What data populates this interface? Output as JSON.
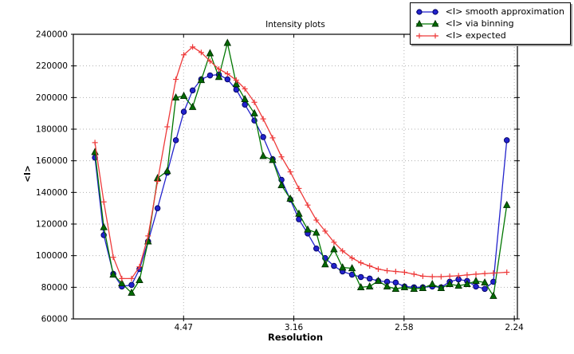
{
  "figure": {
    "background": "#ffffff",
    "frame_color": "#000000",
    "grid_color": "#b0b0b0"
  },
  "chart_data": {
    "type": "line",
    "title": "Intensity plots",
    "xlabel": "Resolution",
    "ylabel": "<I>",
    "grid": true,
    "legend_position": "top-right-outside",
    "x_axis": {
      "unit": "1/d^2",
      "range": [
        0,
        0.2014
      ],
      "ticks": [
        0.05,
        0.1,
        0.15,
        0.2
      ],
      "tick_labels": [
        "4.47",
        "3.16",
        "2.58",
        "2.24"
      ]
    },
    "y_axis": {
      "range": [
        60000,
        240000
      ],
      "ticks": [
        60000,
        80000,
        100000,
        120000,
        140000,
        160000,
        180000,
        200000,
        220000,
        240000
      ],
      "tick_labels": [
        "60000",
        "80000",
        "100000",
        "120000",
        "140000",
        "160000",
        "180000",
        "200000",
        "220000",
        "240000"
      ]
    },
    "x": [
      0.0098,
      0.0138,
      0.0181,
      0.022,
      0.0264,
      0.03,
      0.0339,
      0.0382,
      0.0426,
      0.0465,
      0.0501,
      0.0541,
      0.058,
      0.062,
      0.066,
      0.0699,
      0.0739,
      0.0778,
      0.0821,
      0.0861,
      0.0904,
      0.0944,
      0.0984,
      0.1023,
      0.1063,
      0.1102,
      0.1142,
      0.1182,
      0.1221,
      0.1264,
      0.1304,
      0.1344,
      0.1383,
      0.1423,
      0.1462,
      0.1502,
      0.1545,
      0.1585,
      0.1628,
      0.1668,
      0.1707,
      0.1747,
      0.1786,
      0.1826,
      0.1866,
      0.1905,
      0.1966
    ],
    "series": [
      {
        "name": "<I> smooth approximation",
        "marker": "circle",
        "color": "#2222cc",
        "marker_color": "#2222cc",
        "marker_edge": "#000060",
        "values": [
          162000,
          113000,
          88500,
          80500,
          81500,
          91500,
          109000,
          130000,
          152500,
          173000,
          191000,
          204500,
          211500,
          214000,
          214500,
          211500,
          205000,
          195500,
          185500,
          175000,
          161000,
          148000,
          135500,
          123000,
          114000,
          104500,
          98500,
          93500,
          90000,
          88000,
          86500,
          85500,
          84000,
          83500,
          83000,
          80500,
          80000,
          80000,
          80500,
          80000,
          83500,
          85000,
          84000,
          80500,
          79000,
          83500,
          173000
        ]
      },
      {
        "name": "<I> via binning",
        "marker": "triangle-up",
        "color": "#007700",
        "marker_color": "#006a00",
        "marker_edge": "#002c00",
        "values": [
          165500,
          118000,
          88000,
          82500,
          76500,
          84500,
          109000,
          149000,
          153500,
          200000,
          201000,
          194000,
          211000,
          228000,
          213000,
          234500,
          208500,
          199000,
          190000,
          163000,
          160500,
          144500,
          136000,
          126500,
          116500,
          114500,
          94500,
          104000,
          92500,
          92000,
          80000,
          80500,
          84000,
          80500,
          79000,
          80000,
          79000,
          79500,
          82000,
          79500,
          82000,
          81000,
          82000,
          84000,
          83000,
          74500,
          132000
        ]
      },
      {
        "name": "<I> expected",
        "marker": "plus",
        "color": "#ee3b3b",
        "marker_color": "#ee3b3b",
        "marker_edge": "#ee3b3b",
        "values": [
          171500,
          134000,
          99000,
          85500,
          85500,
          93000,
          112500,
          147000,
          181500,
          211500,
          227000,
          232000,
          228500,
          223000,
          218000,
          215000,
          211000,
          205500,
          197000,
          186500,
          174500,
          162500,
          153000,
          142500,
          132000,
          122500,
          115500,
          108500,
          103000,
          98500,
          95500,
          93500,
          91500,
          90500,
          90000,
          89500,
          88300,
          87000,
          86700,
          86700,
          87000,
          87300,
          87800,
          88300,
          88700,
          89000,
          89500
        ]
      }
    ]
  }
}
